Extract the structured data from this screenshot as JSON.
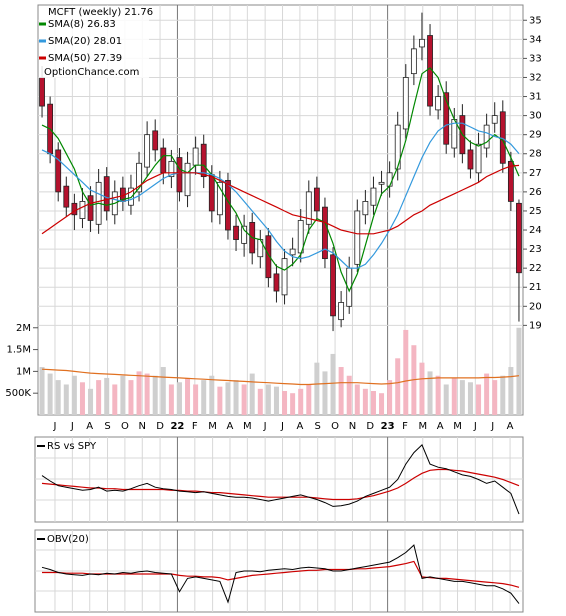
{
  "chart_data": [
    {
      "type": "candlestick",
      "title": "MCFT (weekly) 21.76",
      "watermark": "OptionChance.com",
      "up_color": "#ffffff",
      "down_color": "#b5122e",
      "open": [
        32.0,
        30.6,
        28.2,
        26.3,
        25.4,
        24.6,
        25.8,
        24.3,
        26.8,
        24.8,
        26.2,
        25.3,
        26.0,
        27.3,
        29.2,
        28.3,
        26.8,
        27.8,
        25.8,
        27.4,
        28.5,
        26.9,
        24.8,
        26.6,
        24.2,
        23.3,
        24.4,
        22.6,
        23.7,
        21.7,
        20.6,
        22.7,
        22.8,
        24.3,
        26.2,
        25.2,
        22.7,
        19.3,
        20.0,
        22.2,
        24.8,
        25.3,
        26.4,
        26.3,
        27.2,
        29.3,
        32.2,
        33.6,
        34.2,
        30.3,
        31.2,
        28.3,
        30.0,
        28.2,
        27.0,
        28.3,
        29.6,
        30.2,
        27.6,
        25.4
      ],
      "high": [
        32.6,
        31.0,
        28.6,
        26.8,
        25.9,
        26.2,
        26.3,
        27.2,
        27.3,
        26.6,
        26.8,
        26.9,
        28.1,
        29.7,
        29.8,
        28.8,
        28.2,
        28.3,
        28.1,
        28.9,
        29.0,
        27.4,
        27.1,
        27.0,
        24.8,
        24.8,
        24.9,
        24.0,
        24.1,
        22.2,
        23.0,
        23.6,
        25.1,
        26.6,
        26.8,
        25.7,
        23.1,
        20.8,
        22.6,
        25.6,
        26.1,
        26.8,
        27.1,
        27.6,
        30.2,
        32.7,
        34.2,
        35.4,
        34.8,
        31.6,
        31.8,
        30.4,
        30.6,
        28.7,
        29.1,
        30.1,
        30.7,
        30.8,
        28.1,
        25.6
      ],
      "low": [
        29.9,
        27.5,
        25.5,
        24.7,
        24.0,
        24.1,
        23.9,
        23.8,
        24.5,
        24.3,
        25.0,
        24.8,
        25.5,
        26.8,
        27.6,
        26.4,
        26.2,
        25.5,
        25.2,
        26.9,
        26.2,
        24.4,
        24.3,
        23.5,
        22.9,
        22.6,
        22.2,
        22.0,
        21.0,
        20.2,
        20.1,
        22.1,
        22.3,
        23.8,
        24.5,
        22.0,
        18.7,
        18.9,
        19.6,
        21.8,
        24.3,
        24.8,
        25.8,
        25.7,
        26.6,
        28.8,
        31.6,
        32.9,
        30.0,
        29.8,
        28.0,
        27.8,
        27.5,
        26.7,
        26.5,
        27.8,
        29.1,
        27.0,
        25.0,
        19.2
      ],
      "close": [
        30.5,
        28.0,
        26.0,
        25.2,
        24.8,
        25.5,
        24.5,
        26.5,
        25.0,
        26.0,
        25.5,
        26.2,
        27.5,
        29.0,
        28.2,
        27.0,
        27.6,
        26.0,
        27.5,
        28.3,
        26.8,
        25.0,
        26.5,
        24.0,
        23.5,
        24.2,
        22.8,
        23.5,
        21.5,
        20.8,
        22.5,
        23.0,
        24.5,
        26.0,
        25.0,
        22.5,
        19.5,
        20.2,
        22.0,
        25.0,
        25.5,
        26.2,
        26.5,
        27.0,
        29.5,
        32.0,
        33.5,
        34.0,
        30.5,
        31.0,
        28.5,
        29.8,
        28.0,
        27.2,
        28.5,
        29.5,
        30.0,
        27.5,
        25.5,
        21.76
      ],
      "series": [
        {
          "name": "SMA(8) 26.83",
          "color": "#008800",
          "values": [
            29.5,
            29.3,
            28.8,
            28.0,
            27.2,
            26.0,
            25.3,
            25.4,
            25.3,
            25.4,
            25.6,
            25.7,
            26.2,
            26.8,
            27.4,
            27.9,
            27.9,
            27.2,
            27.0,
            27.4,
            27.4,
            26.9,
            26.2,
            25.5,
            24.9,
            24.0,
            23.6,
            23.5,
            22.7,
            22.1,
            21.9,
            22.2,
            22.7,
            24.0,
            24.6,
            24.4,
            23.3,
            21.8,
            20.8,
            21.7,
            23.2,
            24.7,
            25.9,
            26.3,
            27.3,
            28.7,
            30.5,
            32.2,
            32.5,
            32.0,
            30.8,
            29.8,
            29.0,
            28.6,
            28.4,
            28.6,
            29.0,
            28.7,
            27.8,
            26.83
          ]
        },
        {
          "name": "SMA(20) 28.01",
          "color": "#3399dd",
          "values": [
            28.2,
            28.0,
            27.7,
            27.3,
            26.9,
            26.5,
            26.1,
            25.9,
            25.7,
            25.6,
            25.5,
            25.6,
            25.8,
            26.1,
            26.4,
            26.7,
            26.9,
            27.0,
            27.0,
            27.0,
            27.0,
            26.9,
            26.7,
            26.4,
            26.0,
            25.5,
            25.0,
            24.5,
            24.0,
            23.4,
            22.9,
            22.6,
            22.5,
            22.6,
            22.8,
            23.0,
            22.8,
            22.4,
            22.0,
            22.0,
            22.2,
            22.7,
            23.3,
            24.0,
            24.8,
            25.8,
            26.8,
            27.8,
            28.6,
            29.2,
            29.5,
            29.6,
            29.6,
            29.4,
            29.2,
            29.1,
            28.9,
            28.8,
            28.5,
            28.01
          ]
        },
        {
          "name": "SMA(50) 27.39",
          "color": "#cc0000",
          "values": [
            23.8,
            24.1,
            24.4,
            24.7,
            25.0,
            25.2,
            25.4,
            25.5,
            25.6,
            25.7,
            25.8,
            26.0,
            26.3,
            26.6,
            26.8,
            27.0,
            27.0,
            27.0,
            27.0,
            27.0,
            26.9,
            26.8,
            26.6,
            26.4,
            26.2,
            26.0,
            25.8,
            25.6,
            25.4,
            25.2,
            25.0,
            24.8,
            24.7,
            24.6,
            24.5,
            24.4,
            24.2,
            24.0,
            23.9,
            23.8,
            23.8,
            23.8,
            23.9,
            24.0,
            24.2,
            24.5,
            24.8,
            25.0,
            25.3,
            25.5,
            25.7,
            25.9,
            26.1,
            26.3,
            26.5,
            26.8,
            27.0,
            27.2,
            27.35,
            27.39
          ]
        }
      ],
      "ylim": [
        14.3,
        35.8
      ],
      "yticks": [
        19,
        20,
        21,
        22,
        23,
        24,
        25,
        26,
        27,
        28,
        29,
        30,
        31,
        32,
        33,
        34,
        35
      ],
      "xlim": [
        0,
        60
      ],
      "xticks": [
        {
          "value": 2.1,
          "label": "J"
        },
        {
          "value": 4.25,
          "label": "J"
        },
        {
          "value": 6.4,
          "label": "A"
        },
        {
          "value": 8.6,
          "label": "S"
        },
        {
          "value": 10.75,
          "label": "O"
        },
        {
          "value": 12.9,
          "label": "N"
        },
        {
          "value": 15.1,
          "label": "D"
        },
        {
          "value": 17.25,
          "label": "22"
        },
        {
          "value": 19.4,
          "label": "F"
        },
        {
          "value": 21.6,
          "label": "M"
        },
        {
          "value": 23.75,
          "label": "A"
        },
        {
          "value": 25.9,
          "label": "M"
        },
        {
          "value": 28.1,
          "label": "J"
        },
        {
          "value": 30.25,
          "label": "J"
        },
        {
          "value": 32.4,
          "label": "A"
        },
        {
          "value": 34.6,
          "label": "S"
        },
        {
          "value": 36.75,
          "label": "O"
        },
        {
          "value": 38.9,
          "label": "N"
        },
        {
          "value": 41.1,
          "label": "D"
        },
        {
          "value": 43.25,
          "label": "23"
        },
        {
          "value": 45.4,
          "label": "F"
        },
        {
          "value": 47.6,
          "label": "M"
        },
        {
          "value": 49.75,
          "label": "A"
        },
        {
          "value": 51.9,
          "label": "M"
        },
        {
          "value": 54.1,
          "label": "J"
        },
        {
          "value": 56.25,
          "label": "J"
        },
        {
          "value": 58.4,
          "label": "A"
        }
      ],
      "grid": true
    },
    {
      "type": "bar",
      "up_color": "#f4b6c2",
      "down_color": "#cfcfcf",
      "values": [
        1100000,
        950000,
        800000,
        700000,
        900000,
        750000,
        600000,
        800000,
        850000,
        700000,
        900000,
        800000,
        1000000,
        950000,
        900000,
        1100000,
        700000,
        750000,
        850000,
        700000,
        800000,
        900000,
        650000,
        750000,
        800000,
        700000,
        950000,
        600000,
        700000,
        650000,
        550000,
        500000,
        600000,
        700000,
        1200000,
        1000000,
        1400000,
        1100000,
        900000,
        700000,
        600000,
        550000,
        500000,
        800000,
        1300000,
        1950000,
        1600000,
        1200000,
        1000000,
        900000,
        700000,
        850000,
        800000,
        750000,
        700000,
        950000,
        800000,
        900000,
        1100000,
        2000000
      ],
      "ma_color": "#e07020",
      "ma_values": [
        1050000,
        1040000,
        1030000,
        1020000,
        1000000,
        980000,
        960000,
        950000,
        940000,
        930000,
        920000,
        910000,
        900000,
        890000,
        880000,
        870000,
        860000,
        850000,
        840000,
        830000,
        820000,
        810000,
        800000,
        790000,
        780000,
        770000,
        760000,
        750000,
        740000,
        730000,
        720000,
        710000,
        700000,
        700000,
        710000,
        720000,
        730000,
        740000,
        740000,
        740000,
        730000,
        720000,
        710000,
        720000,
        740000,
        780000,
        810000,
        830000,
        840000,
        850000,
        850000,
        850000,
        850000,
        850000,
        850000,
        860000,
        860000,
        870000,
        880000,
        900000
      ],
      "ylim": [
        0,
        9400000
      ],
      "yticks": [
        {
          "value": 500000,
          "label": "500K"
        },
        {
          "value": 1000000,
          "label": "1M"
        },
        {
          "value": 1500000,
          "label": "1.5M"
        },
        {
          "value": 2000000,
          "label": "2M"
        }
      ]
    },
    {
      "type": "line",
      "label": "RS vs SPY",
      "color": "#000000",
      "ma_color": "#cc0000",
      "ylim": [
        0,
        100
      ],
      "values": [
        55,
        48,
        42,
        40,
        38,
        36,
        37,
        40,
        35,
        36,
        35,
        38,
        42,
        45,
        40,
        38,
        37,
        35,
        34,
        33,
        34,
        32,
        30,
        28,
        27,
        27,
        26,
        24,
        22,
        24,
        26,
        28,
        30,
        27,
        24,
        20,
        15,
        16,
        18,
        22,
        28,
        32,
        36,
        40,
        50,
        70,
        85,
        95,
        70,
        66,
        64,
        60,
        56,
        54,
        50,
        45,
        48,
        40,
        32,
        5
      ],
      "ma_values": [
        45,
        44,
        43,
        42,
        41,
        40,
        39,
        39,
        38,
        38,
        37,
        37,
        37,
        37,
        37,
        37,
        36,
        36,
        35,
        35,
        34,
        33,
        33,
        32,
        31,
        30,
        29,
        28,
        27,
        27,
        27,
        27,
        27,
        27,
        26,
        25,
        24,
        24,
        24,
        25,
        27,
        29,
        32,
        35,
        39,
        45,
        52,
        58,
        62,
        63,
        63,
        62,
        61,
        59,
        57,
        55,
        53,
        50,
        46,
        42
      ]
    },
    {
      "type": "line",
      "label": "OBV(20)",
      "color": "#000000",
      "ma_color": "#cc0000",
      "ylim": [
        0,
        100
      ],
      "values": [
        55,
        52,
        48,
        46,
        45,
        44,
        46,
        45,
        47,
        46,
        48,
        47,
        49,
        50,
        48,
        47,
        46,
        22,
        40,
        42,
        40,
        38,
        36,
        8,
        48,
        50,
        50,
        49,
        51,
        52,
        53,
        52,
        54,
        55,
        54,
        53,
        50,
        50,
        52,
        54,
        56,
        58,
        60,
        62,
        68,
        75,
        85,
        40,
        42,
        40,
        38,
        36,
        36,
        34,
        32,
        30,
        30,
        26,
        20,
        6
      ],
      "ma_values": [
        48,
        48,
        48,
        47,
        47,
        47,
        46,
        46,
        46,
        46,
        46,
        46,
        46,
        46,
        46,
        46,
        46,
        44,
        43,
        43,
        42,
        42,
        41,
        38,
        40,
        42,
        44,
        45,
        46,
        47,
        48,
        49,
        50,
        51,
        51,
        52,
        52,
        52,
        52,
        53,
        53,
        54,
        55,
        56,
        58,
        60,
        63,
        42,
        41,
        40,
        40,
        39,
        38,
        37,
        36,
        35,
        34,
        33,
        31,
        28
      ]
    }
  ]
}
